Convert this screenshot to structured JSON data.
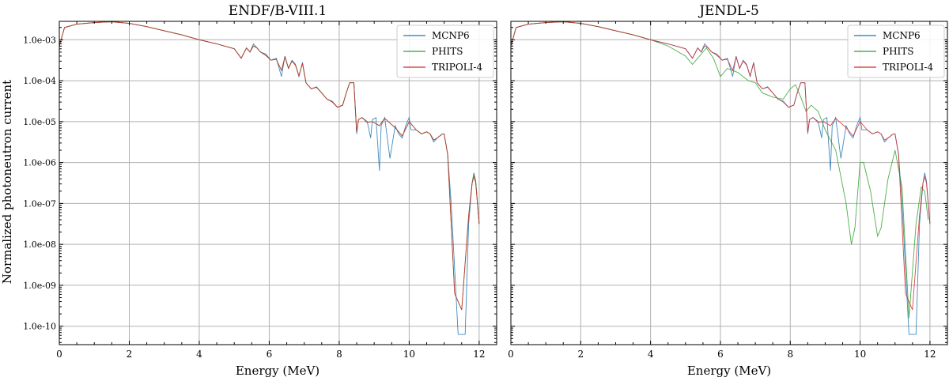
{
  "figure": {
    "ylabel": "Normalized photoneutron current",
    "xlabel": "Energy (MeV)"
  },
  "colors": {
    "MCNP6": "#1f77b4",
    "PHITS": "#2ca02c",
    "TRIPOLI-4": "#d62728",
    "grid": "#b0b0b0"
  },
  "chart_data": [
    {
      "type": "line",
      "title": "ENDF/B-VIII.1",
      "xlabel": "Energy (MeV)",
      "ylabel": "Normalized photoneutron current",
      "xlim": [
        0,
        12.5
      ],
      "ylim_log10": [
        -10.45,
        -2.55
      ],
      "y_scale": "log",
      "x_ticks": [
        0,
        2,
        4,
        6,
        8,
        10,
        12
      ],
      "x_tick_labels": [
        "0",
        "2",
        "4",
        "6",
        "8",
        "10",
        "12"
      ],
      "y_ticks_log10": [
        -10,
        -9,
        -8,
        -7,
        -6,
        -5,
        -4,
        -3
      ],
      "y_tick_labels": [
        "1.0e-10",
        "1.0e-09",
        "1.0e-08",
        "1.0e-07",
        "1.0e-06",
        "1.0e-05",
        "1.0e-04",
        "1.0e-03"
      ],
      "grid": true,
      "legend_position": "top-right",
      "legend": [
        "MCNP6",
        "PHITS",
        "TRIPOLI-4"
      ],
      "series": [
        {
          "name": "MCNP6",
          "x": [
            0,
            0.15,
            0.5,
            1,
            1.5,
            2,
            2.5,
            3,
            3.5,
            4,
            4.5,
            5,
            5.2,
            5.35,
            5.45,
            5.55,
            5.65,
            5.75,
            5.9,
            6.05,
            6.2,
            6.35,
            6.45,
            6.55,
            6.65,
            6.75,
            6.85,
            6.95,
            7.05,
            7.2,
            7.35,
            7.5,
            7.65,
            7.8,
            7.95,
            8.1,
            8.2,
            8.3,
            8.42,
            8.5,
            8.55,
            8.65,
            8.8,
            8.9,
            8.95,
            9.05,
            9.15,
            9.2,
            9.3,
            9.45,
            9.6,
            9.7,
            9.8,
            9.9,
            10.0,
            10.05,
            10.2,
            10.35,
            10.5,
            10.6,
            10.7,
            10.8,
            10.95,
            11.0,
            11.1,
            11.2,
            11.4,
            11.6,
            11.7,
            11.8,
            11.85,
            11.9,
            12.0
          ],
          "y_log10": [
            -3.15,
            -2.7,
            -2.62,
            -2.58,
            -2.56,
            -2.6,
            -2.68,
            -2.78,
            -2.88,
            -3.0,
            -3.1,
            -3.22,
            -3.45,
            -3.2,
            -3.3,
            -3.1,
            -3.2,
            -3.3,
            -3.35,
            -3.5,
            -3.45,
            -3.9,
            -3.4,
            -3.7,
            -3.5,
            -3.6,
            -3.9,
            -3.55,
            -4.05,
            -4.2,
            -4.15,
            -4.3,
            -4.45,
            -4.5,
            -4.65,
            -4.6,
            -4.3,
            -4.05,
            -4.05,
            -5.3,
            -4.95,
            -4.9,
            -5.0,
            -5.4,
            -4.95,
            -4.9,
            -6.2,
            -5.1,
            -4.9,
            -5.9,
            -5.1,
            -5.3,
            -5.4,
            -5.1,
            -4.9,
            -5.2,
            -5.2,
            -5.3,
            -5.25,
            -5.3,
            -5.5,
            -5.4,
            -5.3,
            -5.3,
            -5.8,
            -7.0,
            -10.2,
            -10.2,
            -7.5,
            -6.5,
            -6.25,
            -6.45,
            -7.5
          ]
        },
        {
          "name": "PHITS",
          "x": [
            0,
            0.15,
            0.5,
            1,
            1.5,
            2,
            2.5,
            3,
            3.5,
            4,
            4.5,
            5,
            5.2,
            5.35,
            5.45,
            5.55,
            5.65,
            5.75,
            5.9,
            6.05,
            6.2,
            6.35,
            6.45,
            6.55,
            6.65,
            6.75,
            6.85,
            6.95,
            7.05,
            7.2,
            7.35,
            7.5,
            7.65,
            7.8,
            7.95,
            8.1,
            8.2,
            8.3,
            8.42,
            8.5,
            8.55,
            8.65,
            8.8,
            8.95,
            9.15,
            9.3,
            9.6,
            9.8,
            10.0,
            10.2,
            10.35,
            10.5,
            10.6,
            10.7,
            10.8,
            10.95,
            11.0,
            11.1,
            11.3,
            11.5,
            11.7,
            11.8,
            11.85,
            11.9,
            12.0
          ],
          "y_log10": [
            -3.15,
            -2.7,
            -2.62,
            -2.58,
            -2.56,
            -2.6,
            -2.68,
            -2.78,
            -2.88,
            -3.0,
            -3.1,
            -3.22,
            -3.45,
            -3.2,
            -3.3,
            -3.15,
            -3.2,
            -3.3,
            -3.38,
            -3.5,
            -3.48,
            -3.75,
            -3.42,
            -3.7,
            -3.52,
            -3.62,
            -3.88,
            -3.58,
            -4.05,
            -4.2,
            -4.16,
            -4.3,
            -4.45,
            -4.52,
            -4.65,
            -4.6,
            -4.3,
            -4.05,
            -4.05,
            -5.25,
            -4.95,
            -4.9,
            -5.02,
            -5.0,
            -5.1,
            -4.92,
            -5.15,
            -5.35,
            -5.0,
            -5.2,
            -5.3,
            -5.25,
            -5.3,
            -5.45,
            -5.4,
            -5.3,
            -5.3,
            -5.8,
            -9.2,
            -9.6,
            -7.3,
            -6.5,
            -6.3,
            -6.45,
            -7.5
          ]
        },
        {
          "name": "TRIPOLI-4",
          "x": [
            0,
            0.15,
            0.5,
            1,
            1.5,
            2,
            2.5,
            3,
            3.5,
            4,
            4.5,
            5,
            5.2,
            5.35,
            5.45,
            5.55,
            5.65,
            5.75,
            5.9,
            6.05,
            6.2,
            6.35,
            6.45,
            6.55,
            6.65,
            6.75,
            6.85,
            6.95,
            7.05,
            7.2,
            7.35,
            7.5,
            7.65,
            7.8,
            7.95,
            8.1,
            8.2,
            8.3,
            8.42,
            8.5,
            8.55,
            8.65,
            8.8,
            8.95,
            9.15,
            9.3,
            9.6,
            9.8,
            10.0,
            10.2,
            10.35,
            10.5,
            10.6,
            10.7,
            10.8,
            10.95,
            11.0,
            11.1,
            11.3,
            11.5,
            11.7,
            11.8,
            11.85,
            11.9,
            12.0
          ],
          "y_log10": [
            -3.15,
            -2.7,
            -2.62,
            -2.58,
            -2.56,
            -2.6,
            -2.68,
            -2.78,
            -2.88,
            -3.0,
            -3.1,
            -3.22,
            -3.45,
            -3.2,
            -3.3,
            -3.15,
            -3.2,
            -3.3,
            -3.38,
            -3.5,
            -3.48,
            -3.75,
            -3.42,
            -3.7,
            -3.52,
            -3.62,
            -3.88,
            -3.58,
            -4.05,
            -4.2,
            -4.16,
            -4.3,
            -4.45,
            -4.52,
            -4.65,
            -4.6,
            -4.3,
            -4.05,
            -4.05,
            -5.25,
            -4.95,
            -4.9,
            -5.02,
            -5.0,
            -5.1,
            -4.92,
            -5.15,
            -5.35,
            -5.0,
            -5.2,
            -5.3,
            -5.25,
            -5.3,
            -5.45,
            -5.4,
            -5.3,
            -5.3,
            -5.8,
            -9.2,
            -9.6,
            -7.3,
            -6.5,
            -6.35,
            -6.5,
            -7.5
          ]
        }
      ]
    },
    {
      "type": "line",
      "title": "JENDL-5",
      "xlabel": "Energy (MeV)",
      "ylabel": "",
      "xlim": [
        0,
        12.5
      ],
      "ylim_log10": [
        -10.45,
        -2.55
      ],
      "y_scale": "log",
      "x_ticks": [
        0,
        2,
        4,
        6,
        8,
        10,
        12
      ],
      "x_tick_labels": [
        "0",
        "2",
        "4",
        "6",
        "8",
        "10",
        "12"
      ],
      "y_ticks_log10": [
        -10,
        -9,
        -8,
        -7,
        -6,
        -5,
        -4,
        -3
      ],
      "grid": true,
      "legend_position": "top-right",
      "legend": [
        "MCNP6",
        "PHITS",
        "TRIPOLI-4"
      ],
      "series": [
        {
          "name": "MCNP6",
          "x": [
            0,
            0.15,
            0.5,
            1,
            1.5,
            2,
            2.5,
            3,
            3.5,
            4,
            4.5,
            5,
            5.2,
            5.35,
            5.45,
            5.55,
            5.65,
            5.75,
            5.9,
            6.05,
            6.2,
            6.35,
            6.45,
            6.55,
            6.65,
            6.75,
            6.85,
            6.95,
            7.05,
            7.2,
            7.35,
            7.5,
            7.65,
            7.8,
            7.95,
            8.1,
            8.2,
            8.3,
            8.42,
            8.5,
            8.55,
            8.65,
            8.8,
            8.9,
            8.95,
            9.05,
            9.15,
            9.2,
            9.3,
            9.45,
            9.6,
            9.7,
            9.8,
            9.9,
            10.0,
            10.05,
            10.2,
            10.35,
            10.5,
            10.6,
            10.7,
            10.8,
            10.95,
            11.0,
            11.1,
            11.2,
            11.4,
            11.6,
            11.7,
            11.8,
            11.85,
            11.9,
            12.0
          ],
          "y_log10": [
            -3.15,
            -2.7,
            -2.62,
            -2.58,
            -2.56,
            -2.6,
            -2.68,
            -2.78,
            -2.88,
            -3.0,
            -3.1,
            -3.22,
            -3.45,
            -3.2,
            -3.3,
            -3.1,
            -3.2,
            -3.3,
            -3.35,
            -3.5,
            -3.45,
            -3.9,
            -3.4,
            -3.7,
            -3.5,
            -3.6,
            -3.9,
            -3.55,
            -4.05,
            -4.2,
            -4.15,
            -4.3,
            -4.45,
            -4.5,
            -4.65,
            -4.6,
            -4.3,
            -4.05,
            -4.05,
            -5.3,
            -4.95,
            -4.9,
            -5.0,
            -5.4,
            -4.95,
            -4.9,
            -6.2,
            -5.1,
            -4.9,
            -5.9,
            -5.1,
            -5.3,
            -5.4,
            -5.1,
            -4.9,
            -5.2,
            -5.2,
            -5.3,
            -5.25,
            -5.3,
            -5.5,
            -5.4,
            -5.3,
            -5.3,
            -5.8,
            -7.0,
            -10.2,
            -10.2,
            -7.5,
            -6.5,
            -6.25,
            -6.45,
            -7.5
          ]
        },
        {
          "name": "PHITS",
          "x": [
            0,
            0.15,
            0.5,
            1,
            1.5,
            2,
            2.5,
            3,
            3.5,
            4,
            4.5,
            5,
            5.2,
            5.4,
            5.6,
            5.8,
            6.0,
            6.2,
            6.5,
            6.8,
            7.0,
            7.2,
            7.5,
            7.8,
            8.0,
            8.15,
            8.3,
            8.45,
            8.6,
            8.8,
            9.0,
            9.3,
            9.6,
            9.75,
            9.85,
            10.0,
            10.1,
            10.3,
            10.5,
            10.6,
            10.8,
            11.0,
            11.2,
            11.4,
            11.6,
            11.75,
            11.85,
            11.95
          ],
          "y_log10": [
            -3.15,
            -2.7,
            -2.62,
            -2.58,
            -2.56,
            -2.6,
            -2.68,
            -2.78,
            -2.88,
            -3.0,
            -3.15,
            -3.4,
            -3.6,
            -3.4,
            -3.2,
            -3.45,
            -3.9,
            -3.7,
            -3.8,
            -4.0,
            -4.05,
            -4.3,
            -4.4,
            -4.45,
            -4.2,
            -4.1,
            -4.4,
            -4.75,
            -4.6,
            -4.75,
            -5.2,
            -5.7,
            -7.0,
            -8.0,
            -7.6,
            -6.0,
            -6.0,
            -6.7,
            -7.8,
            -7.6,
            -6.4,
            -5.7,
            -6.6,
            -9.8,
            -7.5,
            -6.6,
            -6.7,
            -7.4
          ]
        },
        {
          "name": "TRIPOLI-4",
          "x": [
            0,
            0.15,
            0.5,
            1,
            1.5,
            2,
            2.5,
            3,
            3.5,
            4,
            4.5,
            5,
            5.2,
            5.35,
            5.45,
            5.55,
            5.65,
            5.75,
            5.9,
            6.05,
            6.2,
            6.35,
            6.45,
            6.55,
            6.65,
            6.75,
            6.85,
            6.95,
            7.05,
            7.2,
            7.35,
            7.5,
            7.65,
            7.8,
            7.95,
            8.1,
            8.2,
            8.3,
            8.42,
            8.5,
            8.55,
            8.65,
            8.8,
            8.95,
            9.15,
            9.3,
            9.6,
            9.8,
            10.0,
            10.2,
            10.35,
            10.5,
            10.6,
            10.7,
            10.8,
            10.95,
            11.0,
            11.1,
            11.3,
            11.5,
            11.7,
            11.8,
            11.85,
            11.9,
            12.0
          ],
          "y_log10": [
            -3.15,
            -2.7,
            -2.62,
            -2.58,
            -2.56,
            -2.6,
            -2.68,
            -2.78,
            -2.88,
            -3.0,
            -3.1,
            -3.22,
            -3.45,
            -3.2,
            -3.3,
            -3.15,
            -3.2,
            -3.3,
            -3.38,
            -3.5,
            -3.48,
            -3.75,
            -3.42,
            -3.7,
            -3.52,
            -3.62,
            -3.88,
            -3.58,
            -4.05,
            -4.2,
            -4.16,
            -4.3,
            -4.45,
            -4.52,
            -4.65,
            -4.6,
            -4.3,
            -4.05,
            -4.05,
            -5.25,
            -4.95,
            -4.9,
            -5.02,
            -5.0,
            -5.1,
            -4.92,
            -5.15,
            -5.35,
            -5.0,
            -5.2,
            -5.3,
            -5.25,
            -5.3,
            -5.45,
            -5.4,
            -5.3,
            -5.3,
            -5.8,
            -9.2,
            -9.6,
            -7.3,
            -6.5,
            -6.35,
            -6.5,
            -7.5
          ]
        }
      ]
    }
  ]
}
